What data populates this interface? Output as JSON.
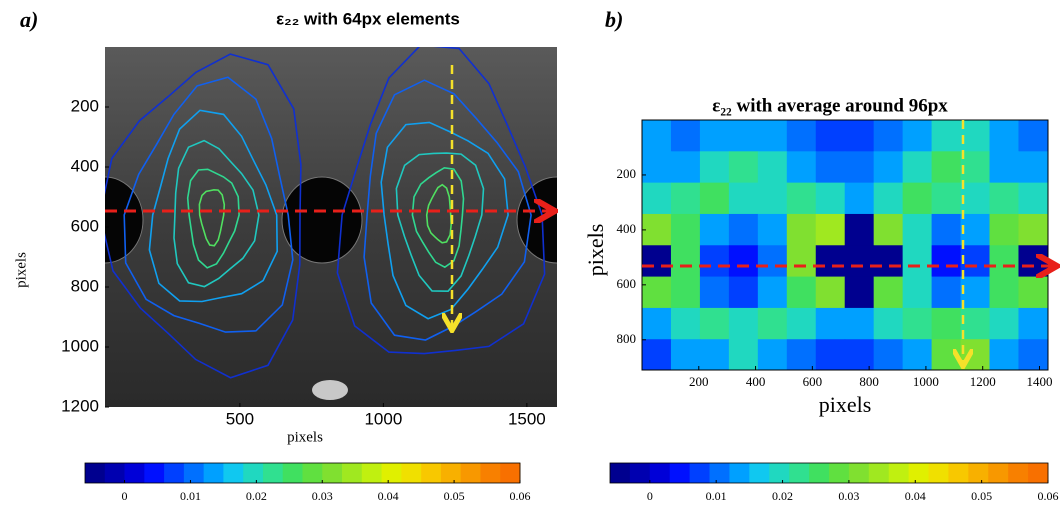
{
  "chart_data": [
    {
      "type": "contour",
      "panel_label": "a)",
      "title": "ε₂₂ with 64px elements",
      "xlabel": "pixels",
      "ylabel": "pixels",
      "xlim": [
        30,
        1605
      ],
      "ylim": [
        0,
        1200
      ],
      "y_inverted": true,
      "xticks": [
        500,
        1000,
        1500
      ],
      "yticks": [
        200,
        400,
        600,
        800,
        1000,
        1200
      ],
      "colorbar": {
        "lim": [
          -0.006,
          0.06
        ],
        "ticks": [
          0,
          0.01,
          0.02,
          0.03,
          0.04,
          0.05,
          0.06
        ],
        "colors": [
          "#00008f",
          "#0000b0",
          "#0000d8",
          "#0010ff",
          "#0040ff",
          "#0070ff",
          "#00a0ff",
          "#10c8f0",
          "#20d8c0",
          "#30e090",
          "#40e060",
          "#60e040",
          "#80e030",
          "#a0e820",
          "#c0f010",
          "#e0f000",
          "#f0e000",
          "#f8c800",
          "#f8b000",
          "#f89800",
          "#f88000",
          "#f87000"
        ]
      }
    },
    {
      "type": "heatmap",
      "panel_label": "b)",
      "title": "ε₂₂ with average around 96px",
      "xlabel": "pixels",
      "ylabel": "pixels",
      "xlim": [
        0,
        1430
      ],
      "ylim": [
        0,
        910
      ],
      "y_inverted": true,
      "xticks": [
        200,
        400,
        600,
        800,
        1000,
        1200,
        1400
      ],
      "yticks": [
        200,
        400,
        600,
        800
      ],
      "x_edges": [
        0,
        102,
        204,
        306,
        408,
        510,
        612,
        714,
        816,
        918,
        1020,
        1122,
        1224,
        1326,
        1428
      ],
      "y_edges": [
        0,
        114,
        228,
        342,
        456,
        570,
        684,
        798,
        910
      ],
      "values": [
        [
          0.012,
          0.01,
          0.012,
          0.015,
          0.012,
          0.01,
          0.008,
          0.008,
          0.01,
          0.015,
          0.02,
          0.018,
          0.012,
          0.01
        ],
        [
          0.015,
          0.015,
          0.02,
          0.022,
          0.018,
          0.012,
          0.01,
          0.01,
          0.012,
          0.02,
          0.025,
          0.022,
          0.015,
          0.012
        ],
        [
          0.02,
          0.022,
          0.025,
          0.02,
          0.018,
          0.022,
          0.018,
          0.015,
          0.02,
          0.025,
          0.022,
          0.02,
          0.022,
          0.018
        ],
        [
          0.03,
          0.025,
          0.015,
          0.01,
          0.015,
          0.03,
          0.035,
          -0.005,
          0.03,
          0.02,
          0.01,
          0.015,
          0.028,
          0.03
        ],
        [
          -0.005,
          0.025,
          0.008,
          0.005,
          0.01,
          0.03,
          -0.005,
          -0.005,
          -0.005,
          0.018,
          0.005,
          0.008,
          0.025,
          -0.005
        ],
        [
          0.028,
          0.025,
          0.01,
          0.008,
          0.015,
          0.025,
          0.032,
          -0.005,
          0.028,
          0.02,
          0.01,
          0.015,
          0.025,
          0.028
        ],
        [
          0.015,
          0.02,
          0.022,
          0.02,
          0.022,
          0.018,
          0.015,
          0.012,
          0.018,
          0.022,
          0.025,
          0.022,
          0.018,
          0.015
        ],
        [
          0.008,
          0.012,
          0.015,
          0.018,
          0.015,
          0.01,
          0.008,
          0.008,
          0.01,
          0.015,
          0.028,
          0.032,
          0.015,
          0.01
        ]
      ],
      "colorbar": {
        "lim": [
          -0.006,
          0.06
        ],
        "ticks": [
          0,
          0.01,
          0.02,
          0.03,
          0.04,
          0.05,
          0.06
        ],
        "colors": [
          "#00008f",
          "#0000b0",
          "#0000d8",
          "#0010ff",
          "#0040ff",
          "#0070ff",
          "#00a0ff",
          "#10c8f0",
          "#20d8c0",
          "#30e090",
          "#40e060",
          "#60e040",
          "#80e030",
          "#a0e820",
          "#c0f010",
          "#e0f000",
          "#f0e000",
          "#f8c800",
          "#f8b000",
          "#f89800",
          "#f88000",
          "#f87000"
        ]
      }
    }
  ]
}
